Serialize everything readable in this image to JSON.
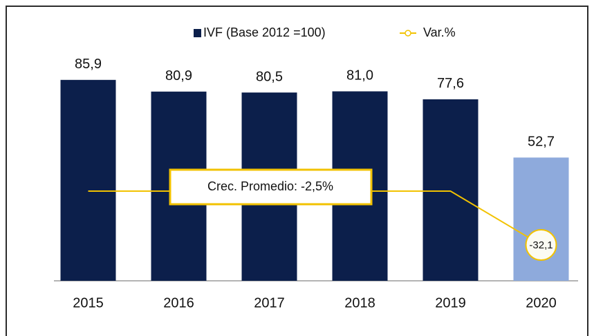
{
  "chart_data": {
    "type": "bar",
    "categories": [
      "2015",
      "2016",
      "2017",
      "2018",
      "2019",
      "2020"
    ],
    "series": [
      {
        "name": "IVF (Base 2012 =100)",
        "type": "bar",
        "color": "#0c1f4b",
        "colors": [
          "#0c1f4b",
          "#0c1f4b",
          "#0c1f4b",
          "#0c1f4b",
          "#0c1f4b",
          "#8eaadc"
        ],
        "values": [
          85.9,
          80.9,
          80.5,
          81.0,
          77.6,
          52.7
        ],
        "value_labels": [
          "85,9",
          "80,9",
          "80,5",
          "81,0",
          "77,6",
          "52,7"
        ]
      },
      {
        "name": "Var.%",
        "type": "line",
        "axis": "y2",
        "color": "#f2c200",
        "values": [
          0,
          0,
          0,
          0,
          0,
          -32.1
        ],
        "value_labels": [
          null,
          null,
          null,
          null,
          null,
          "-32,1"
        ]
      }
    ],
    "ylim": [
      0,
      100
    ],
    "y2lim": [
      -53.5,
      86
    ],
    "annotation": "Crec. Promedio: -2,5%",
    "legend": "top"
  }
}
